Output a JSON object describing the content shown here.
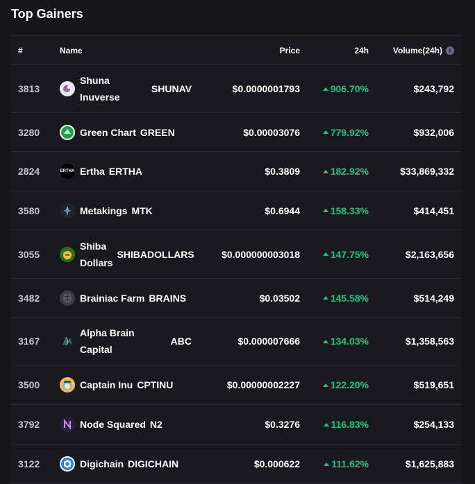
{
  "title": "Top Gainers",
  "header": {
    "rank": "#",
    "name": "Name",
    "price": "Price",
    "change": "24h",
    "volume": "Volume(24h)"
  },
  "colors": {
    "positive": "#16c784",
    "background": "#17171a"
  },
  "rows": [
    {
      "rank": "3813",
      "name": "Shuna Inuverse",
      "symbol": "SHUNAV",
      "price": "$0.0000001793",
      "change": "906.70%",
      "volume": "$243,792",
      "icon": "shuna-icon"
    },
    {
      "rank": "3280",
      "name": "Green Chart",
      "symbol": "GREEN",
      "price": "$0.00003076",
      "change": "779.92%",
      "volume": "$932,006",
      "icon": "green-chart-icon"
    },
    {
      "rank": "2824",
      "name": "Ertha",
      "symbol": "ERTHA",
      "price": "$0.3809",
      "change": "182.92%",
      "volume": "$33,869,332",
      "icon": "ertha-icon"
    },
    {
      "rank": "3580",
      "name": "Metakings",
      "symbol": "MTK",
      "price": "$0.6944",
      "change": "158.33%",
      "volume": "$414,451",
      "icon": "metakings-icon"
    },
    {
      "rank": "3055",
      "name": "Shiba Dollars",
      "symbol": "SHIBADOLLARS",
      "price": "$0.000000003018",
      "change": "147.75%",
      "volume": "$2,163,656",
      "icon": "shiba-dollars-icon"
    },
    {
      "rank": "3482",
      "name": "Brainiac Farm",
      "symbol": "BRAINS",
      "price": "$0.03502",
      "change": "145.58%",
      "volume": "$514,249",
      "icon": "brainiac-farm-icon"
    },
    {
      "rank": "3167",
      "name": "Alpha Brain Capital",
      "symbol": "ABC",
      "price": "$0.000007666",
      "change": "134.03%",
      "volume": "$1,358,563",
      "icon": "alpha-brain-icon"
    },
    {
      "rank": "3500",
      "name": "Captain Inu",
      "symbol": "CPTINU",
      "price": "$0.00000002227",
      "change": "122.20%",
      "volume": "$519,651",
      "icon": "captain-inu-icon"
    },
    {
      "rank": "3792",
      "name": "Node Squared",
      "symbol": "N2",
      "price": "$0.3276",
      "change": "116.83%",
      "volume": "$254,133",
      "icon": "node-squared-icon"
    },
    {
      "rank": "3122",
      "name": "Digichain",
      "symbol": "DIGICHAIN",
      "price": "$0.000622",
      "change": "111.62%",
      "volume": "$1,625,883",
      "icon": "digichain-icon"
    }
  ]
}
